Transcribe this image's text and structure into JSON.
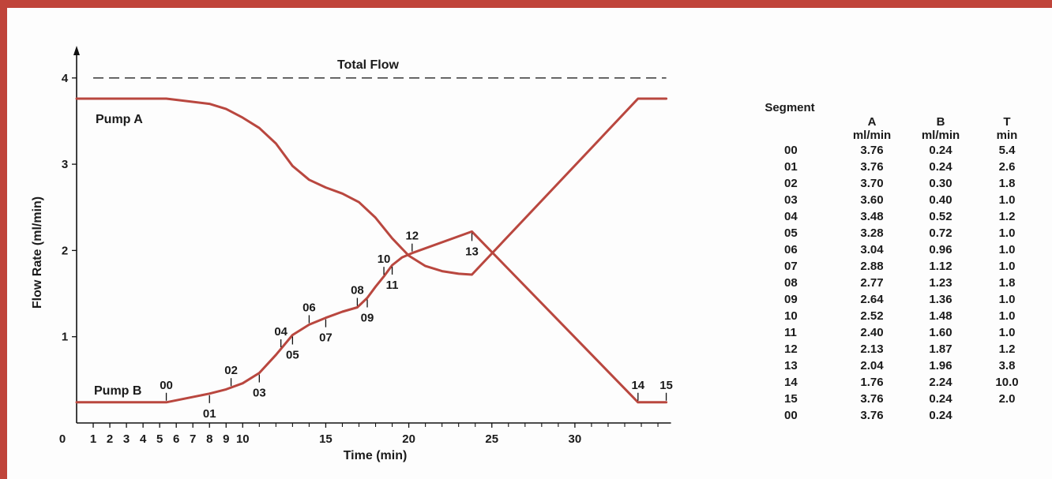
{
  "chart_data": {
    "type": "line",
    "title": "",
    "xlabel": "Time (min)",
    "ylabel": "Flow Rate (ml/min)",
    "xlim": [
      0,
      35.5
    ],
    "ylim": [
      0,
      4.3
    ],
    "x_ticks": [
      {
        "value": 0,
        "label": "0"
      },
      {
        "value": 1,
        "label": "1"
      },
      {
        "value": 2,
        "label": "2"
      },
      {
        "value": 3,
        "label": "3"
      },
      {
        "value": 4,
        "label": "4"
      },
      {
        "value": 5,
        "label": "5"
      },
      {
        "value": 6,
        "label": "6"
      },
      {
        "value": 7,
        "label": "7"
      },
      {
        "value": 8,
        "label": "8"
      },
      {
        "value": 9,
        "label": "9"
      },
      {
        "value": 10,
        "label": "10"
      },
      {
        "value": 15,
        "label": "15"
      },
      {
        "value": 20,
        "label": "20"
      },
      {
        "value": 25,
        "label": "25"
      },
      {
        "value": 30,
        "label": "30"
      }
    ],
    "x_minor_ticks": [
      11,
      12,
      13,
      14,
      16,
      17,
      18,
      19,
      21,
      22,
      23,
      24,
      26,
      27,
      28,
      29,
      31,
      32,
      33,
      34,
      35
    ],
    "y_ticks": [
      {
        "value": 1,
        "label": "1"
      },
      {
        "value": 2,
        "label": "2"
      },
      {
        "value": 3,
        "label": "3"
      },
      {
        "value": 4,
        "label": "4"
      }
    ],
    "total_flow": {
      "label": "Total Flow",
      "value": 4.0
    },
    "series": [
      {
        "name": "Pump A",
        "color": "#b9473f",
        "x": [
          0,
          5.4,
          8.0,
          9.0,
          10.0,
          11.0,
          12.0,
          13.0,
          14.0,
          15.0,
          16.0,
          17.0,
          18.0,
          19.0,
          20.0,
          21.0,
          22.0,
          23.0,
          23.8,
          33.8,
          35.5
        ],
        "y": [
          3.76,
          3.76,
          3.7,
          3.64,
          3.54,
          3.42,
          3.24,
          2.98,
          2.82,
          2.73,
          2.66,
          2.56,
          2.38,
          2.14,
          1.94,
          1.82,
          1.76,
          1.73,
          1.72,
          3.76,
          3.76
        ]
      },
      {
        "name": "Pump B",
        "color": "#b9473f",
        "x": [
          0,
          5.4,
          8.0,
          9.0,
          10.0,
          11.0,
          12.0,
          13.0,
          14.0,
          15.0,
          16.0,
          16.9,
          17.5,
          18.0,
          18.5,
          19.0,
          19.6,
          20.2,
          23.8,
          33.8,
          35.5
        ],
        "y": [
          0.24,
          0.24,
          0.34,
          0.39,
          0.46,
          0.58,
          0.79,
          1.02,
          1.14,
          1.22,
          1.29,
          1.34,
          1.45,
          1.58,
          1.7,
          1.83,
          1.92,
          1.97,
          2.22,
          0.24,
          0.24
        ]
      }
    ],
    "segment_marks": [
      {
        "label": "00",
        "x": 5.4,
        "y": 0.24,
        "side": "above"
      },
      {
        "label": "01",
        "x": 8.0,
        "y": 0.34,
        "side": "below"
      },
      {
        "label": "02",
        "x": 9.3,
        "y": 0.41,
        "side": "above"
      },
      {
        "label": "03",
        "x": 11.0,
        "y": 0.58,
        "side": "below"
      },
      {
        "label": "04",
        "x": 12.3,
        "y": 0.86,
        "side": "above"
      },
      {
        "label": "05",
        "x": 13.0,
        "y": 1.02,
        "side": "below"
      },
      {
        "label": "06",
        "x": 14.0,
        "y": 1.14,
        "side": "above"
      },
      {
        "label": "07",
        "x": 15.0,
        "y": 1.22,
        "side": "below"
      },
      {
        "label": "08",
        "x": 16.9,
        "y": 1.34,
        "side": "above"
      },
      {
        "label": "09",
        "x": 17.5,
        "y": 1.45,
        "side": "below"
      },
      {
        "label": "10",
        "x": 18.5,
        "y": 1.7,
        "side": "above"
      },
      {
        "label": "11",
        "x": 19.0,
        "y": 1.83,
        "side": "below"
      },
      {
        "label": "12",
        "x": 20.2,
        "y": 1.97,
        "side": "above"
      },
      {
        "label": "13",
        "x": 23.8,
        "y": 2.22,
        "side": "below"
      },
      {
        "label": "14",
        "x": 33.8,
        "y": 0.24,
        "side": "above"
      },
      {
        "label": "15",
        "x": 35.5,
        "y": 0.24,
        "side": "above"
      }
    ]
  },
  "table": {
    "headers": [
      {
        "line1": "Segment",
        "line2": ""
      },
      {
        "line1": "A",
        "line2": "ml/min"
      },
      {
        "line1": "B",
        "line2": "ml/min"
      },
      {
        "line1": "T",
        "line2": "min"
      }
    ],
    "rows": [
      [
        "00",
        "3.76",
        "0.24",
        "5.4"
      ],
      [
        "01",
        "3.76",
        "0.24",
        "2.6"
      ],
      [
        "02",
        "3.70",
        "0.30",
        "1.8"
      ],
      [
        "03",
        "3.60",
        "0.40",
        "1.0"
      ],
      [
        "04",
        "3.48",
        "0.52",
        "1.2"
      ],
      [
        "05",
        "3.28",
        "0.72",
        "1.0"
      ],
      [
        "06",
        "3.04",
        "0.96",
        "1.0"
      ],
      [
        "07",
        "2.88",
        "1.12",
        "1.0"
      ],
      [
        "08",
        "2.77",
        "1.23",
        "1.8"
      ],
      [
        "09",
        "2.64",
        "1.36",
        "1.0"
      ],
      [
        "10",
        "2.52",
        "1.48",
        "1.0"
      ],
      [
        "11",
        "2.40",
        "1.60",
        "1.0"
      ],
      [
        "12",
        "2.13",
        "1.87",
        "1.2"
      ],
      [
        "13",
        "2.04",
        "1.96",
        "3.8"
      ],
      [
        "14",
        "1.76",
        "2.24",
        "10.0"
      ],
      [
        "15",
        "3.76",
        "0.24",
        "2.0"
      ],
      [
        "00",
        "3.76",
        "0.24",
        ""
      ]
    ]
  }
}
